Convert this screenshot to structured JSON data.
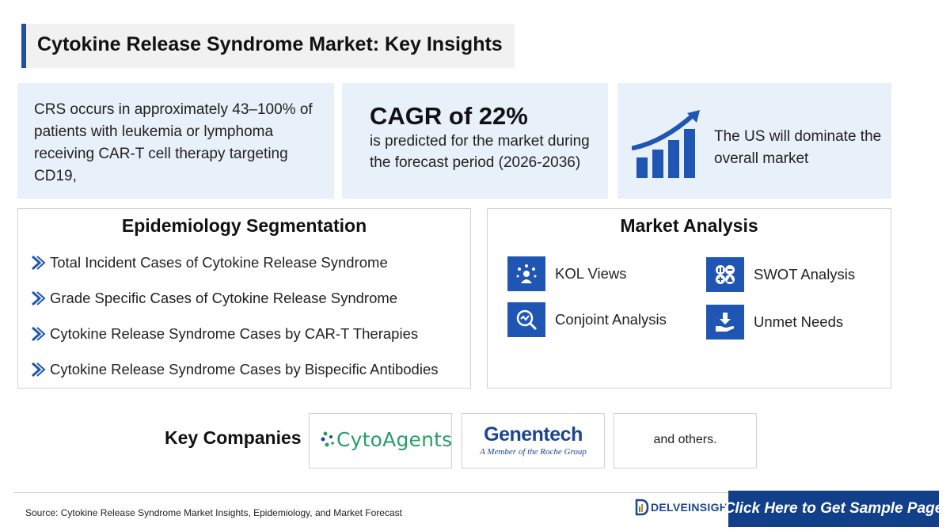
{
  "title": "Cytokine Release Syndrome Market: Key Insights",
  "insights": {
    "crs_text": "CRS occurs in approximately 43–100% of patients with leukemia or lymphoma receiving CAR-T cell therapy targeting CD19,",
    "cagr_heading": "CAGR of 22%",
    "cagr_text": "is predicted for the market during the forecast period (2026-2036)",
    "us_text": "The US will dominate the overall market"
  },
  "epidemiology": {
    "title": "Epidemiology Segmentation",
    "items": [
      "Total Incident Cases of Cytokine Release Syndrome",
      "Grade Specific Cases of Cytokine Release Syndrome",
      "Cytokine Release Syndrome Cases by CAR-T Therapies",
      "Cytokine Release Syndrome Cases by Bispecific Antibodies"
    ]
  },
  "market_analysis": {
    "title": "Market Analysis",
    "items": [
      {
        "label": "KOL Views",
        "icon": "kol-icon"
      },
      {
        "label": "Conjoint Analysis",
        "icon": "conjoint-icon"
      },
      {
        "label": "SWOT Analysis",
        "icon": "swot-icon"
      },
      {
        "label": "Unmet Needs",
        "icon": "unmet-needs-icon"
      }
    ]
  },
  "companies": {
    "label": "Key Companies",
    "logo1": "CytoAgents",
    "logo2_name": "Genentech",
    "logo2_sub": "A Member of the Roche Group",
    "others": "and others."
  },
  "footer": {
    "source": "Source: Cytokine Release Syndrome Market Insights, Epidemiology, and Market Forecast",
    "brand": "DELVEINSIGHT",
    "cta": "Click Here to Get Sample Page"
  },
  "colors": {
    "accent": "#1f56b3",
    "card_bg": "#e8f0fa",
    "cta_bg": "#123f8a",
    "cyto_green": "#2a9d6a"
  }
}
